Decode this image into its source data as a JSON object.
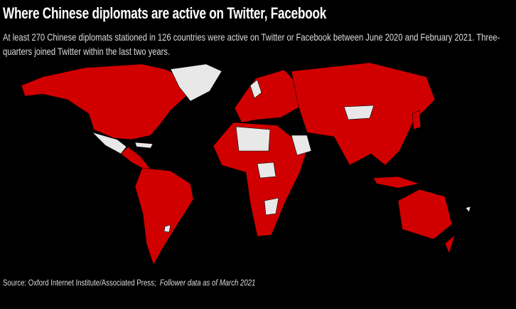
{
  "header": {
    "title": "Where Chinese diplomats are active on Twitter, Facebook",
    "subtitle": "At least 270 Chinese diplomats stationed in 126 countries were active on Twitter or Facebook between June 2020 and February 2021. Three-quarters joined Twitter within the last two years."
  },
  "footer": {
    "source": "Source: Oxford Internet Institute/Associated Press;",
    "note": "Follower data as of March 2021"
  }
}
